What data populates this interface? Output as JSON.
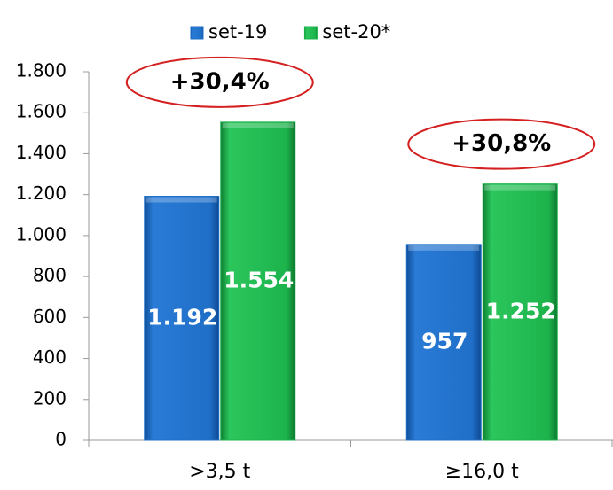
{
  "chart_data": {
    "type": "bar",
    "categories": [
      ">3,5 t",
      "≥16,0 t"
    ],
    "series": [
      {
        "name": "set-19",
        "color": "#1f6fc8",
        "values": [
          1192,
          957
        ],
        "value_labels": [
          "1.192",
          "957"
        ]
      },
      {
        "name": "set-20*",
        "color": "#1db34c",
        "values": [
          1554,
          1252
        ],
        "value_labels": [
          "1.554",
          "1.252"
        ]
      }
    ],
    "ylim": [
      0,
      1800
    ],
    "yticks": [
      0,
      200,
      400,
      600,
      800,
      {
        "value": 1000,
        "label": "1.000"
      },
      {
        "value": 1200,
        "label": "1.200"
      },
      {
        "value": 1400,
        "label": "1.400"
      },
      {
        "value": 1600,
        "label": "1.600"
      },
      {
        "value": 1800,
        "label": "1.800"
      }
    ],
    "annotations": [
      "+30,4%",
      "+30,8%"
    ],
    "legend": "top"
  }
}
